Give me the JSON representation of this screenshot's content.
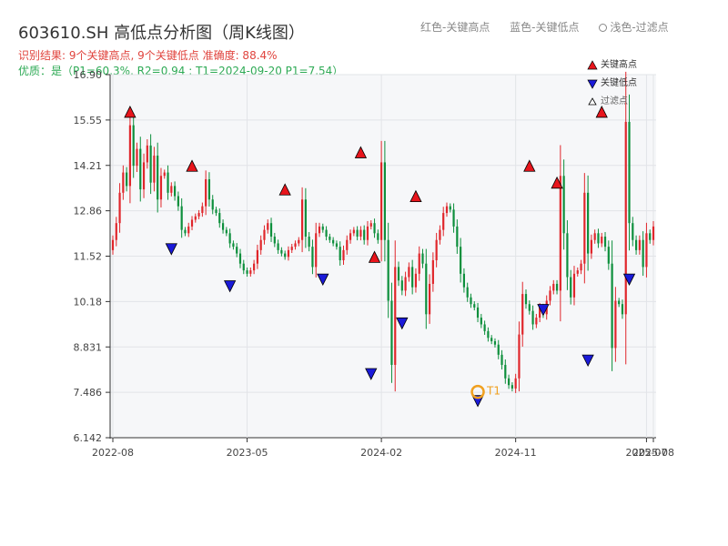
{
  "title": "603610.SH 高低点分析图（周K线图）",
  "subtitle_result": "识别结果: 9个关键高点, 9个关键低点  准确度: 88.4%",
  "subtitle_quality": "优质：是（P1=60.3%, R2=0.94 ; T1=2024-09-20 P1=7.54）",
  "top_legend": {
    "red": "红色-关键高点",
    "blue": "蓝色-关键低点",
    "light": "浅色-过滤点"
  },
  "legend": {
    "high": "关键高点",
    "low": "关键低点",
    "filtered": "过滤点"
  },
  "colors": {
    "up": "#e0262b",
    "down": "#0d8f3c",
    "high_marker": "#e8151c",
    "low_marker": "#1a1ad9",
    "t1_ring": "#f0a020",
    "plot_bg": "#f6f7f9",
    "grid": "#e2e4e8"
  },
  "chart_data": {
    "type": "candlestick",
    "ylim": [
      6.142,
      16.9
    ],
    "y_ticks": [
      "6.142",
      "7.486",
      "8.831",
      "10.18",
      "11.52",
      "12.86",
      "14.21",
      "15.55",
      "16.90"
    ],
    "x_ticks": [
      {
        "label": "2022-08",
        "week": 0
      },
      {
        "label": "2023-05",
        "week": 39
      },
      {
        "label": "2024-02",
        "week": 78
      },
      {
        "label": "2024-11",
        "week": 117
      },
      {
        "label": "2025-07",
        "week": 155
      }
    ],
    "x_ticks_overlap": [
      {
        "label": "2025-08",
        "week": 157
      }
    ],
    "weeks": 158,
    "closes": [
      12.0,
      12.5,
      13.4,
      14.0,
      13.6,
      15.4,
      14.2,
      14.7,
      13.5,
      14.3,
      14.8,
      13.7,
      14.5,
      13.2,
      13.9,
      14.0,
      13.4,
      13.6,
      13.3,
      13.0,
      12.3,
      12.2,
      12.4,
      12.6,
      12.7,
      12.8,
      13.0,
      13.8,
      13.2,
      12.9,
      12.8,
      12.5,
      12.3,
      12.2,
      11.9,
      11.8,
      11.6,
      11.3,
      11.1,
      11.0,
      11.1,
      11.3,
      11.7,
      12.0,
      12.3,
      12.5,
      12.1,
      11.9,
      11.7,
      11.6,
      11.5,
      11.7,
      11.8,
      11.9,
      12.0,
      13.2,
      12.1,
      11.8,
      11.2,
      12.2,
      12.4,
      12.3,
      12.1,
      12.0,
      11.9,
      11.8,
      11.4,
      11.7,
      12.0,
      12.2,
      12.3,
      12.1,
      12.3,
      12.0,
      12.4,
      12.5,
      12.2,
      12.0,
      14.3,
      12.0,
      10.2,
      8.3,
      11.2,
      10.8,
      10.5,
      10.9,
      11.2,
      10.6,
      11.0,
      11.6,
      11.3,
      9.8,
      10.7,
      11.4,
      12.0,
      12.3,
      12.8,
      13.0,
      12.9,
      12.4,
      11.8,
      11.0,
      10.6,
      10.3,
      10.1,
      10.0,
      9.7,
      9.5,
      9.3,
      9.1,
      9.0,
      8.9,
      8.6,
      8.3,
      7.9,
      7.7,
      7.6,
      7.9,
      9.2,
      10.4,
      10.1,
      9.9,
      9.5,
      9.7,
      10.0,
      9.8,
      10.2,
      10.5,
      10.7,
      10.5,
      13.9,
      12.2,
      10.9,
      10.3,
      11.0,
      11.1,
      11.3,
      13.4,
      11.6,
      12.0,
      12.2,
      11.9,
      12.1,
      11.8,
      11.3,
      8.8,
      10.2,
      10.1,
      9.8,
      15.5,
      12.5,
      12.0,
      11.7,
      12.0,
      11.2,
      12.2,
      12.0,
      12.4
    ]
  },
  "markers": {
    "highs": [
      {
        "week": 5,
        "value": 15.5
      },
      {
        "week": 23,
        "value": 13.9
      },
      {
        "week": 50,
        "value": 13.2
      },
      {
        "week": 72,
        "value": 14.3
      },
      {
        "week": 76,
        "value": 11.2
      },
      {
        "week": 88,
        "value": 13.0
      },
      {
        "week": 121,
        "value": 13.9
      },
      {
        "week": 129,
        "value": 13.4
      },
      {
        "week": 142,
        "value": 15.5
      }
    ],
    "lows": [
      {
        "week": 17,
        "value": 12.0
      },
      {
        "week": 34,
        "value": 10.9
      },
      {
        "week": 61,
        "value": 11.1
      },
      {
        "week": 75,
        "value": 8.3
      },
      {
        "week": 84,
        "value": 9.8
      },
      {
        "week": 106,
        "value": 7.5
      },
      {
        "week": 125,
        "value": 10.2
      },
      {
        "week": 138,
        "value": 8.7
      },
      {
        "week": 150,
        "value": 11.1
      }
    ],
    "t1": {
      "label": "T1",
      "week": 106,
      "value": 7.5
    }
  }
}
